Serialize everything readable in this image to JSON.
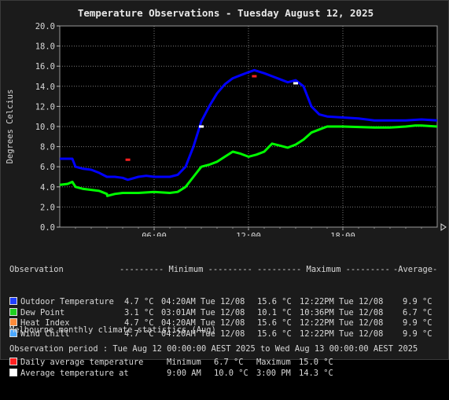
{
  "title": "Temperature Observations - Tuesday August 12, 2025",
  "chart_data": {
    "type": "line",
    "ylabel": "Degrees Celcius",
    "ylim": [
      0,
      20
    ],
    "yticks": [
      "0.0",
      "2.0",
      "4.0",
      "6.0",
      "8.0",
      "10.0",
      "12.0",
      "14.0",
      "16.0",
      "18.0",
      "20.0"
    ],
    "xlim_hours": [
      0,
      24
    ],
    "xticks": [
      {
        "label": "06:00",
        "hour": 6
      },
      {
        "label": "12:00",
        "hour": 12
      },
      {
        "label": "18:00",
        "hour": 18
      }
    ],
    "grid": true,
    "series": [
      {
        "name": "Outdoor Temperature",
        "color": "#0000ff",
        "points": [
          [
            0,
            6.8
          ],
          [
            0.8,
            6.8
          ],
          [
            1.0,
            6.0
          ],
          [
            1.5,
            5.8
          ],
          [
            2.0,
            5.7
          ],
          [
            2.5,
            5.4
          ],
          [
            3.0,
            5.0
          ],
          [
            3.5,
            5.0
          ],
          [
            4.0,
            4.9
          ],
          [
            4.33,
            4.7
          ],
          [
            5.0,
            5.0
          ],
          [
            5.5,
            5.1
          ],
          [
            6.0,
            5.0
          ],
          [
            7.0,
            5.0
          ],
          [
            7.5,
            5.2
          ],
          [
            8.0,
            6.0
          ],
          [
            8.5,
            8.0
          ],
          [
            9.0,
            10.5
          ],
          [
            9.5,
            12.0
          ],
          [
            10.0,
            13.3
          ],
          [
            10.5,
            14.2
          ],
          [
            11.0,
            14.8
          ],
          [
            11.5,
            15.1
          ],
          [
            12.0,
            15.4
          ],
          [
            12.37,
            15.6
          ],
          [
            13.0,
            15.3
          ],
          [
            13.5,
            15.0
          ],
          [
            14.0,
            14.7
          ],
          [
            14.5,
            14.4
          ],
          [
            15.0,
            14.6
          ],
          [
            15.5,
            14.0
          ],
          [
            16.0,
            12.0
          ],
          [
            16.5,
            11.2
          ],
          [
            17.0,
            11.0
          ],
          [
            18.0,
            10.9
          ],
          [
            19.0,
            10.8
          ],
          [
            20.0,
            10.6
          ],
          [
            21.0,
            10.6
          ],
          [
            22.0,
            10.6
          ],
          [
            23.0,
            10.7
          ],
          [
            24.0,
            10.6
          ]
        ]
      },
      {
        "name": "Dew Point",
        "color": "#00ff00",
        "points": [
          [
            0,
            4.2
          ],
          [
            0.5,
            4.3
          ],
          [
            0.8,
            4.5
          ],
          [
            1.0,
            4.0
          ],
          [
            1.5,
            3.8
          ],
          [
            2.0,
            3.7
          ],
          [
            2.5,
            3.6
          ],
          [
            3.0,
            3.3
          ],
          [
            3.02,
            3.1
          ],
          [
            3.5,
            3.3
          ],
          [
            4.0,
            3.4
          ],
          [
            5.0,
            3.4
          ],
          [
            6.0,
            3.5
          ],
          [
            7.0,
            3.4
          ],
          [
            7.5,
            3.5
          ],
          [
            8.0,
            4.0
          ],
          [
            8.5,
            5.0
          ],
          [
            9.0,
            6.0
          ],
          [
            9.5,
            6.2
          ],
          [
            10.0,
            6.5
          ],
          [
            10.5,
            7.0
          ],
          [
            11.0,
            7.5
          ],
          [
            11.5,
            7.3
          ],
          [
            12.0,
            7.0
          ],
          [
            12.5,
            7.2
          ],
          [
            13.0,
            7.5
          ],
          [
            13.5,
            8.3
          ],
          [
            14.0,
            8.1
          ],
          [
            14.5,
            7.9
          ],
          [
            15.0,
            8.2
          ],
          [
            15.5,
            8.7
          ],
          [
            16.0,
            9.4
          ],
          [
            16.5,
            9.7
          ],
          [
            17.0,
            10.0
          ],
          [
            18.0,
            10.0
          ],
          [
            19.0,
            9.95
          ],
          [
            20.0,
            9.9
          ],
          [
            21.0,
            9.9
          ],
          [
            22.0,
            10.0
          ],
          [
            22.6,
            10.1
          ],
          [
            23.0,
            10.1
          ],
          [
            24.0,
            10.0
          ]
        ]
      }
    ],
    "climate_markers": [
      {
        "label": "Daily average temperature",
        "color": "#ff2020",
        "points": [
          [
            4.33,
            6.7
          ],
          [
            12.37,
            15.0
          ]
        ]
      },
      {
        "label": "Average temperature at",
        "color": "#ffffff",
        "points": [
          [
            9.0,
            10.0
          ],
          [
            15.0,
            14.3
          ]
        ]
      }
    ]
  },
  "legend": {
    "header": {
      "observation": "Observation",
      "minimum": "--------- Minimum ---------",
      "maximum": "--------- Maximum ---------",
      "average": "-Average-"
    },
    "rows": [
      {
        "color": "#2040ff",
        "label": "Outdoor Temperature",
        "min_val": "4.7 °C",
        "min_time": "04:20AM Tue 12/08",
        "max_val": "15.6 °C",
        "max_time": "12:22PM Tue 12/08",
        "avg": "9.9 °C"
      },
      {
        "color": "#20d020",
        "label": "Dew Point",
        "min_val": "3.1 °C",
        "min_time": "03:01AM Tue 12/08",
        "max_val": "10.1 °C",
        "max_time": "10:36PM Tue 12/08",
        "avg": "6.7 °C"
      },
      {
        "color": "#ff8c3a",
        "label": "Heat Index",
        "min_val": "4.7 °C",
        "min_time": "04:20AM Tue 12/08",
        "max_val": "15.6 °C",
        "max_time": "12:22PM Tue 12/08",
        "avg": "9.9 °C"
      },
      {
        "color": "#4aa8ff",
        "label": "Wind Chill",
        "min_val": "4.7 °C",
        "min_time": "04:20AM Tue 12/08",
        "max_val": "15.6 °C",
        "max_time": "12:22PM Tue 12/08",
        "avg": "9.9 °C"
      }
    ]
  },
  "climate": {
    "heading": "Melbourne monthly climate statistics (Aug)",
    "rows": [
      {
        "color": "#ff2020",
        "label": "Daily average temperature",
        "a_label": "Minimum",
        "a_val": "6.7 °C",
        "b_label": "Maximum",
        "b_val": "15.0 °C"
      },
      {
        "color": "#ffffff",
        "label": "Average temperature at",
        "a_label": "9:00 AM",
        "a_val": "10.0 °C",
        "b_label": "3:00 PM",
        "b_val": "14.3 °C"
      }
    ]
  },
  "period": "Observation period : Tue Aug 12 00:00:00 AEST 2025 to Wed Aug 13 00:00:00 AEST 2025"
}
